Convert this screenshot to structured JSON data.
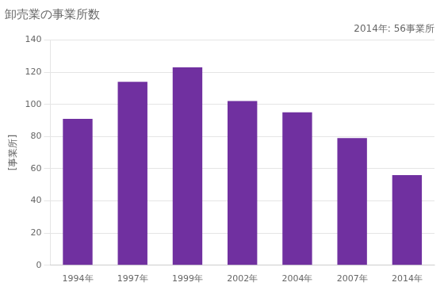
{
  "chart_data": {
    "type": "bar",
    "title": "卸売業の事業所数",
    "ylabel": "[事業所]",
    "annotation": "2014年: 56事業所",
    "categories": [
      "1994年",
      "1997年",
      "1999年",
      "2002年",
      "2004年",
      "2007年",
      "2014年"
    ],
    "values": [
      91,
      114,
      123,
      102,
      95,
      79,
      56
    ],
    "color": "#7030A0",
    "ylim": [
      0,
      140
    ],
    "yticks": [
      0,
      20,
      40,
      60,
      80,
      100,
      120,
      140
    ],
    "grid": true
  }
}
